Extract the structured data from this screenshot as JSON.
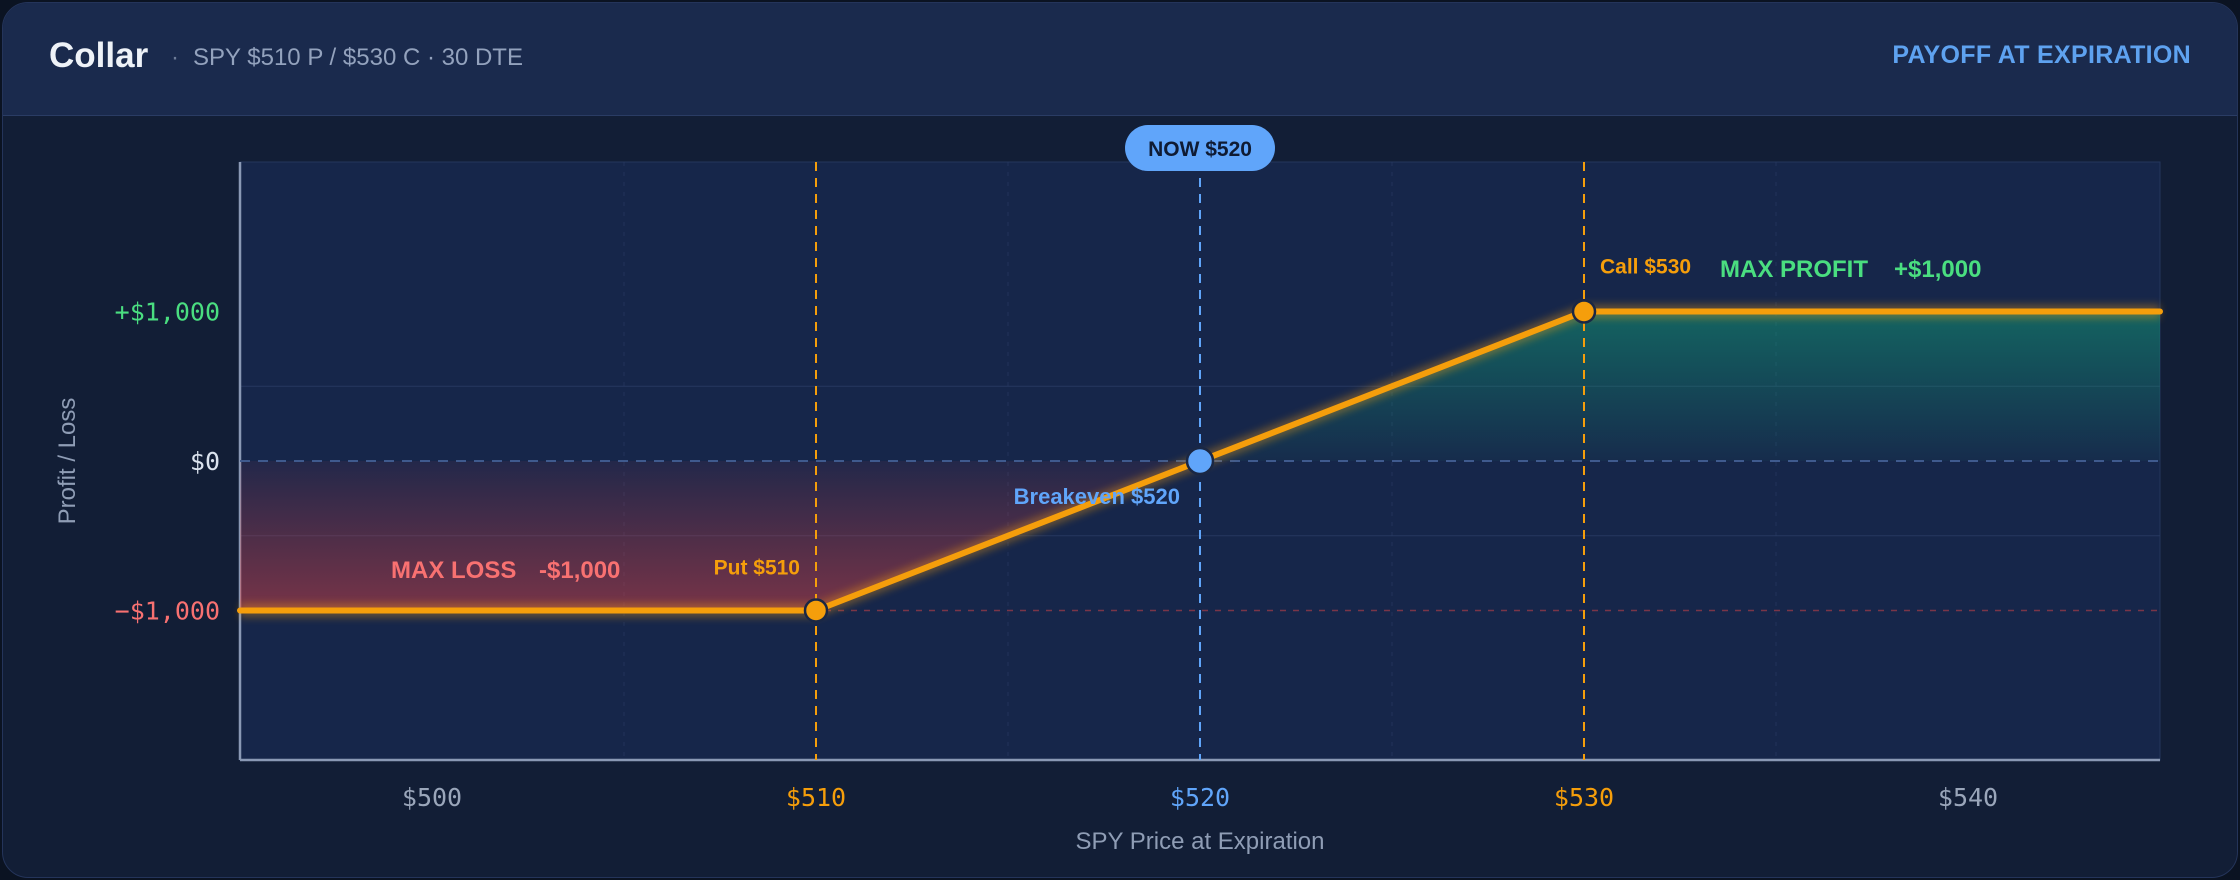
{
  "header": {
    "title": "Collar",
    "separator": "·",
    "subtitle": "SPY $510 P / $530 C · 30 DTE",
    "badge": "PAYOFF AT EXPIRATION"
  },
  "colors": {
    "line": "#f59e0b",
    "profit": "#34d399",
    "profit_text": "#4ade80",
    "loss": "#f05252",
    "loss_text": "#f87171",
    "accent": "#60a5fa",
    "strike": "#f59e0b"
  },
  "chart_data": {
    "type": "line",
    "title": "",
    "xlabel": "SPY Price at Expiration",
    "ylabel": "Profit / Loss",
    "xlim": [
      495,
      545
    ],
    "ylim": [
      -2000,
      2000
    ],
    "x_ticks": [
      {
        "value": 500,
        "label": "$500",
        "highlight": "none"
      },
      {
        "value": 510,
        "label": "$510",
        "highlight": "strike"
      },
      {
        "value": 520,
        "label": "$520",
        "highlight": "current"
      },
      {
        "value": 530,
        "label": "$530",
        "highlight": "strike"
      },
      {
        "value": 540,
        "label": "$540",
        "highlight": "none"
      }
    ],
    "y_ticks": [
      {
        "value": 1000,
        "label": "+$1,000",
        "tone": "profit"
      },
      {
        "value": 0,
        "label": "$0",
        "tone": "neutral"
      },
      {
        "value": -1000,
        "label": "−$1,000",
        "tone": "loss"
      }
    ],
    "series": [
      {
        "x": [
          495,
          510,
          530,
          545
        ],
        "y": [
          -1000,
          -1000,
          1000,
          1000
        ]
      }
    ],
    "strikes": [
      {
        "x": 510,
        "y": -1000,
        "label": "Put $510"
      },
      {
        "x": 530,
        "y": 1000,
        "label": "Call $530"
      }
    ],
    "current": {
      "x": 520,
      "label": "NOW $520"
    },
    "breakeven": {
      "x": 520,
      "y": 0,
      "label": "Breakeven $520"
    },
    "max_profit": {
      "label": "MAX PROFIT",
      "value": "+$1,000"
    },
    "max_loss": {
      "label": "MAX LOSS",
      "value": "-$1,000"
    },
    "grid": true
  }
}
